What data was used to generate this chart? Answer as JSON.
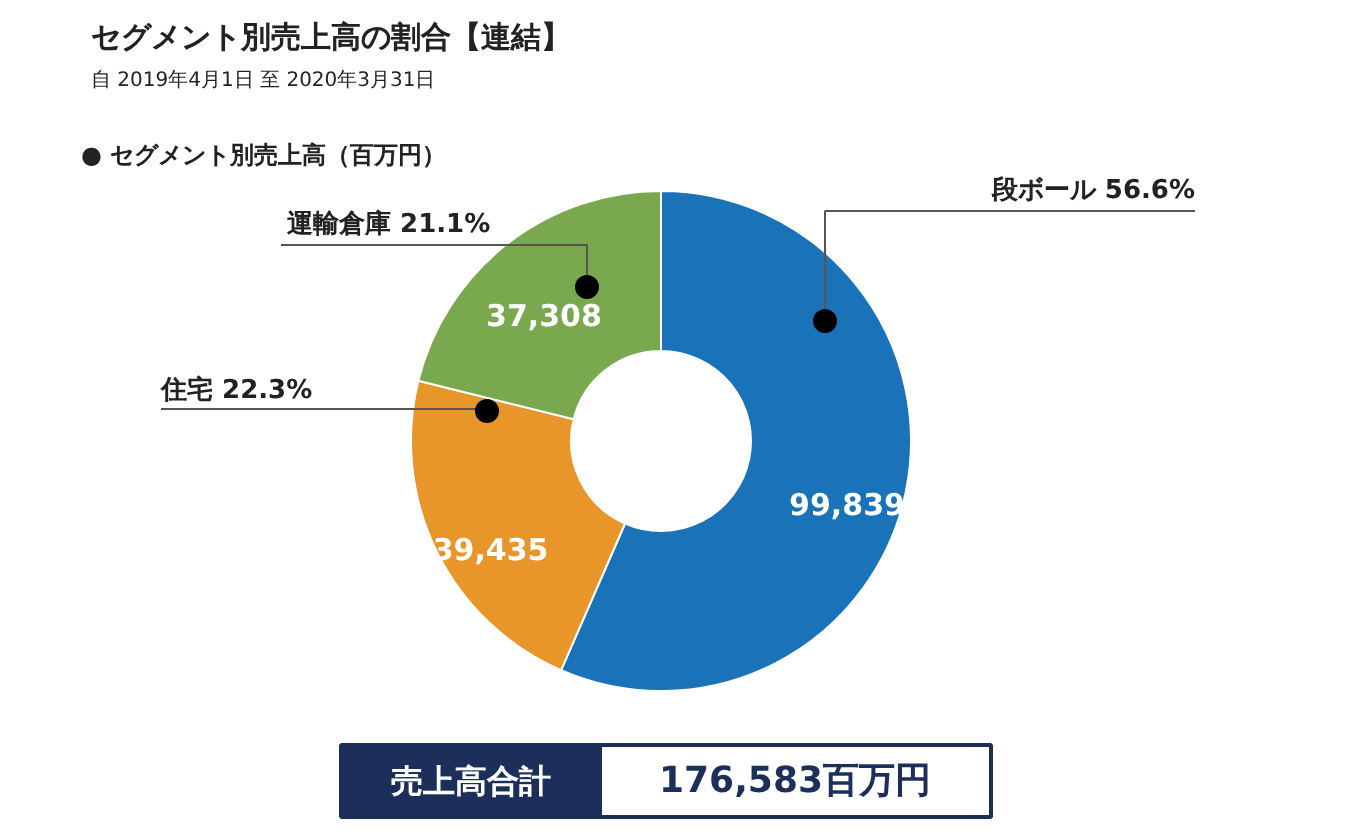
{
  "chart_data": {
    "type": "donut",
    "title": "セグメント別売上高の割合【連結】",
    "subtitle": "自 2019年4月1日  至  2020年3月31日",
    "categories": [
      "段ボール 56.6%",
      "住宅 22.3%",
      "運輸倉庫 21.1%"
    ],
    "values": [
      99839,
      39435,
      37308
    ],
    "colors": [
      "#1a72b8",
      "#e8962a",
      "#7aa84e"
    ],
    "value_labels": [
      "99,839",
      "39,435",
      "37,308"
    ],
    "annotations": [
      "● セグメント別売上高（百万円）",
      "売上高合計",
      "176,583百万円"
    ]
  }
}
